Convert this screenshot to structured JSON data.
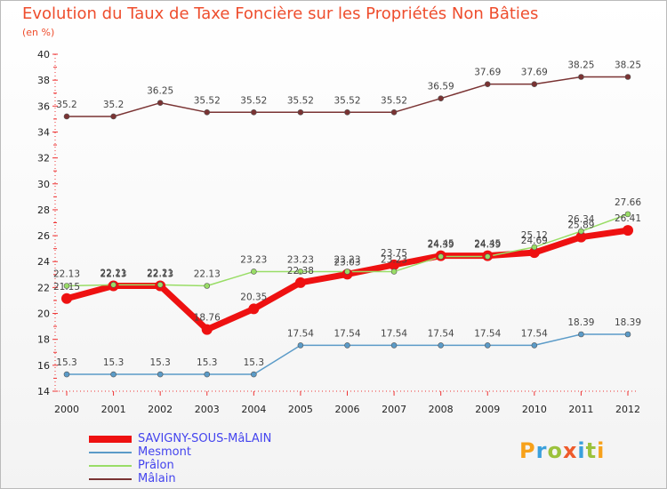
{
  "title": "Evolution du Taux de Taxe Foncière sur les Propriétés Non Bâties",
  "subtitle": "(en %)",
  "logo": {
    "text": "Proxiti",
    "colors": [
      "#f7a11a",
      "#3aa0dc",
      "#9bc23c",
      "#ee5b2b",
      "#3aa0dc",
      "#9bc23c",
      "#f7a11a"
    ]
  },
  "chart_data": {
    "type": "line",
    "title": "Evolution du Taux de Taxe Foncière sur les Propriétés Non Bâties",
    "ylabel": "(en %)",
    "xlabel": "",
    "categories": [
      "2000",
      "2001",
      "2002",
      "2003",
      "2004",
      "2005",
      "2006",
      "2007",
      "2008",
      "2009",
      "2010",
      "2011",
      "2012"
    ],
    "ylim": [
      14,
      40
    ],
    "yticks": [
      14,
      16,
      18,
      20,
      22,
      24,
      26,
      28,
      30,
      32,
      34,
      36,
      38,
      40
    ],
    "series": [
      {
        "name": "SAVIGNY-SOUS-MâLAIN",
        "color": "#ee1111",
        "values": [
          21.15,
          22.13,
          22.13,
          18.76,
          20.35,
          22.38,
          23.03,
          23.75,
          24.45,
          24.45,
          24.69,
          25.89,
          26.41
        ],
        "labels": [
          "21.15",
          "22.13",
          "22.13",
          "18.76",
          "20.35",
          "22.38",
          "23.03",
          "23.75",
          "24.45",
          "24.45",
          "24.69",
          "25.89",
          "26.41"
        ]
      },
      {
        "name": "Mesmont",
        "color": "#5b9bc8",
        "values": [
          15.3,
          15.3,
          15.3,
          15.3,
          15.3,
          17.54,
          17.54,
          17.54,
          17.54,
          17.54,
          17.54,
          18.39,
          18.39
        ],
        "labels": [
          "15.3",
          "15.3",
          "15.3",
          "15.3",
          "15.3",
          "17.54",
          "17.54",
          "17.54",
          "17.54",
          "17.54",
          "17.54",
          "18.39",
          "18.39"
        ]
      },
      {
        "name": "Prâlon",
        "color": "#99dd66",
        "values": [
          22.13,
          22.21,
          22.21,
          22.13,
          23.23,
          23.23,
          23.23,
          23.23,
          24.39,
          24.39,
          25.12,
          26.34,
          27.66
        ],
        "labels": [
          "22.13",
          "22.21",
          "22.21",
          "22.13",
          "23.23",
          "23.23",
          "23.23",
          "23.23",
          "24.39",
          "24.39",
          "25.12",
          "26.34",
          "27.66"
        ]
      },
      {
        "name": "Mâlain",
        "color": "#7a3333",
        "values": [
          35.2,
          35.2,
          36.25,
          35.52,
          35.52,
          35.52,
          35.52,
          35.52,
          36.59,
          37.69,
          37.69,
          38.25,
          38.25
        ],
        "labels": [
          "35.2",
          "35.2",
          "36.25",
          "35.52",
          "35.52",
          "35.52",
          "35.52",
          "35.52",
          "36.59",
          "37.69",
          "37.69",
          "38.25",
          "38.25"
        ]
      }
    ],
    "legend_position": "bottom-left",
    "grid": false
  }
}
